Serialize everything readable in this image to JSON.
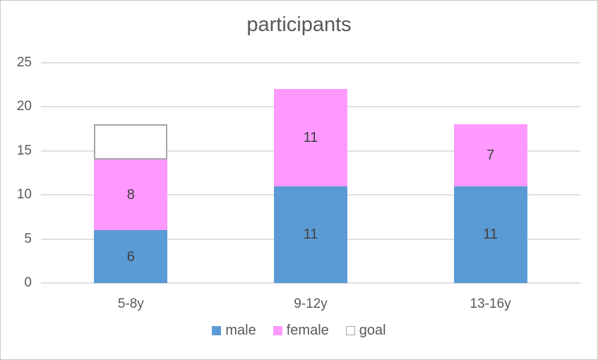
{
  "chart_data": {
    "type": "bar",
    "stacked": true,
    "title": "participants",
    "categories": [
      "5-8y",
      "9-12y",
      "13-16y"
    ],
    "series": [
      {
        "name": "male",
        "color": "#5b9bd5",
        "border": "",
        "values": [
          6,
          11,
          11
        ],
        "labels": [
          "6",
          "11",
          "11"
        ]
      },
      {
        "name": "female",
        "color": "#ff99ff",
        "border": "",
        "values": [
          8,
          11,
          7
        ],
        "labels": [
          "8",
          "11",
          "7"
        ]
      },
      {
        "name": "goal",
        "color": "#ffffff",
        "border": "#a6a6a6",
        "values": [
          4,
          0,
          0
        ],
        "labels": [
          "",
          "",
          ""
        ]
      }
    ],
    "yticks": [
      0,
      5,
      10,
      15,
      20,
      25
    ],
    "ylim": [
      0,
      25
    ],
    "grid": true,
    "legend_position": "bottom",
    "colors": {
      "gridline": "#e0e0e0",
      "axis_text": "#595959",
      "title_text": "#595959",
      "data_label_text": "#404040"
    }
  }
}
